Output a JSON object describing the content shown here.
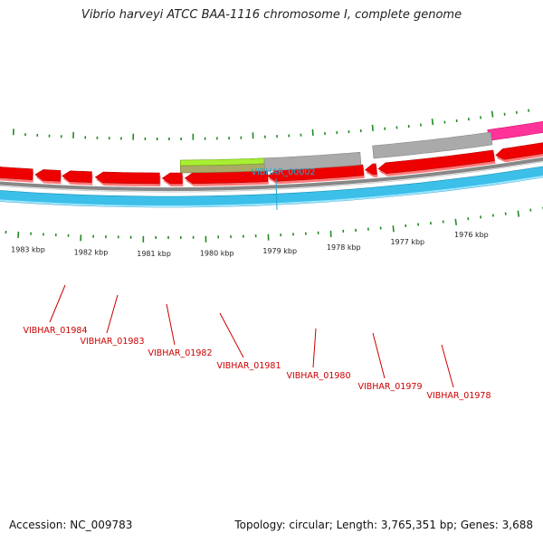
{
  "title": "Vibrio harveyi ATCC BAA-1116 chromosome I, complete genome",
  "footer": {
    "accession": "Accession: NC_009783",
    "topology": "Topology: circular; Length: 3,765,351 bp; Genes: 3,688"
  },
  "colors": {
    "forward_strand": "#3cbfe8",
    "reverse_genes": "#ee0000",
    "tick": "#228b22",
    "label_red": "#cc0000",
    "label_cyan": "#22aacc",
    "backbone": "#777777",
    "pink_feature": "#ff3399",
    "lime_feature": "#aaee33",
    "olive_feature": "#aaaa66",
    "grey_feature": "#aaaaaa"
  },
  "scale_labels": [
    "1983 kbp",
    "1982 kbp",
    "1981 kbp",
    "1980 kbp",
    "1979 kbp",
    "1978 kbp",
    "1977 kbp",
    "1976 kbp"
  ],
  "gene_labels": [
    {
      "name": "VIBHAR_00002",
      "color": "label_cyan"
    },
    {
      "name": "VIBHAR_01984",
      "color": "label_red"
    },
    {
      "name": "VIBHAR_01983",
      "color": "label_red"
    },
    {
      "name": "VIBHAR_01982",
      "color": "label_red"
    },
    {
      "name": "VIBHAR_01981",
      "color": "label_red"
    },
    {
      "name": "VIBHAR_01980",
      "color": "label_red"
    },
    {
      "name": "VIBHAR_01979",
      "color": "label_red"
    },
    {
      "name": "VIBHAR_01978",
      "color": "label_red"
    }
  ]
}
